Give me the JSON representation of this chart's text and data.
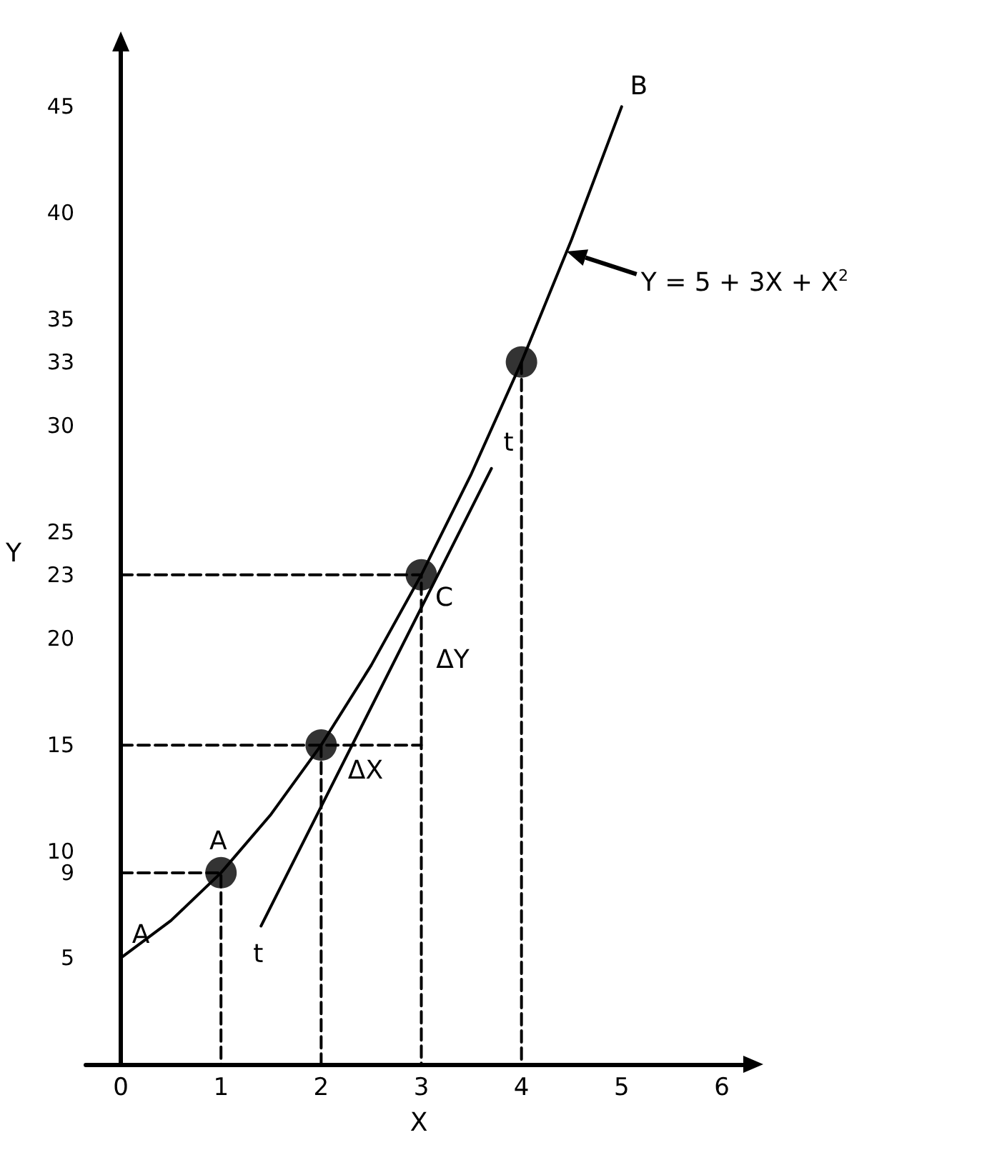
{
  "chart_data": {
    "type": "line",
    "xlabel": "X",
    "ylabel": "Y",
    "xlim": [
      -0.35,
      6.3
    ],
    "ylim": [
      0,
      48
    ],
    "xticks": [
      0,
      1,
      2,
      3,
      4,
      5,
      6
    ],
    "yticks": [
      5,
      9,
      10,
      15,
      20,
      23,
      25,
      30,
      33,
      35,
      40,
      45
    ],
    "grid": false,
    "series": [
      {
        "color": "#000000",
        "marker": "none",
        "line_style": "solid",
        "x": [
          0,
          0.5,
          1,
          1.5,
          2,
          2.5,
          3,
          3.5,
          4,
          4.5,
          5
        ],
        "values": [
          5,
          6.75,
          9,
          11.75,
          15,
          18.75,
          23,
          27.75,
          33,
          38.75,
          45
        ]
      },
      {
        "color": "#000000",
        "marker": "none",
        "line_style": "solid",
        "x": [
          1.4,
          3.7
        ],
        "values": [
          6.5,
          28
        ]
      },
      {
        "color": "#000000",
        "marker": "none",
        "line_style": "dashed",
        "x": [
          0,
          1,
          1
        ],
        "values": [
          9,
          9,
          0
        ]
      },
      {
        "color": "#000000",
        "marker": "none",
        "line_style": "dashed",
        "x": [
          0,
          3
        ],
        "values": [
          15,
          15
        ]
      },
      {
        "color": "#000000",
        "marker": "none",
        "line_style": "dashed",
        "x": [
          2,
          2
        ],
        "values": [
          15,
          0
        ]
      },
      {
        "color": "#000000",
        "marker": "none",
        "line_style": "dashed",
        "x": [
          0,
          3,
          3
        ],
        "values": [
          23,
          23,
          0
        ]
      },
      {
        "color": "#000000",
        "marker": "none",
        "line_style": "dashed",
        "x": [
          4,
          4
        ],
        "values": [
          33,
          0
        ]
      },
      {
        "type": "scatter",
        "color": "#000000",
        "marker": "circle",
        "x": [
          1,
          2,
          3,
          4
        ],
        "values": [
          9,
          15,
          23,
          33
        ]
      }
    ],
    "annotations": [
      {
        "text": "A",
        "x": 0,
        "y": 5
      },
      {
        "text": "A",
        "x": 1,
        "y": 9
      },
      {
        "text": "B",
        "x": 5,
        "y": 45
      },
      {
        "text": "C",
        "x": 3,
        "y": 23
      },
      {
        "text": "t",
        "x": 3.7,
        "y": 28
      },
      {
        "text": "t",
        "x": 1.4,
        "y": 6.5
      },
      {
        "text": "ΔX",
        "x": 2.5,
        "y": 15
      },
      {
        "text": "ΔY",
        "x": 3,
        "y": 19
      },
      {
        "text": "Y = 5 + 3X + X$^{2}$",
        "x": 4.45,
        "y": 38.2
      }
    ]
  }
}
